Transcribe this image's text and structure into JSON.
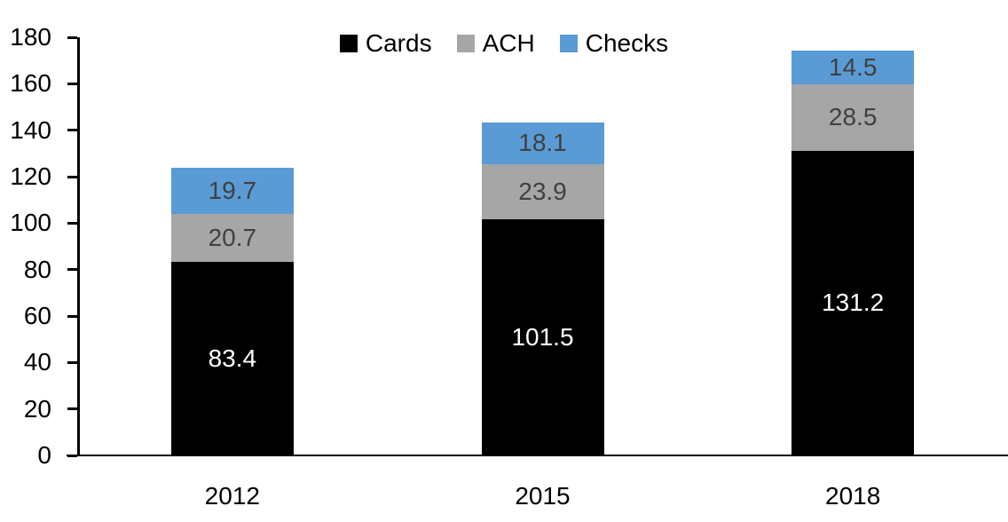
{
  "chart_data": {
    "type": "bar",
    "stacked": true,
    "title": "",
    "xlabel": "",
    "ylabel": "",
    "categories": [
      "2012",
      "2015",
      "2018"
    ],
    "series": [
      {
        "name": "Cards",
        "color": "#000000",
        "label_color": "#ffffff",
        "values": [
          83.4,
          101.5,
          131.2
        ]
      },
      {
        "name": "ACH",
        "color": "#a6a6a6",
        "label_color": "#404040",
        "values": [
          20.7,
          23.9,
          28.5
        ]
      },
      {
        "name": "Checks",
        "color": "#5b9bd5",
        "label_color": "#404040",
        "values": [
          19.7,
          18.1,
          14.5
        ]
      }
    ],
    "totals": [
      123.8,
      143.5,
      174.2
    ],
    "ylim": [
      0,
      180
    ],
    "yticks": [
      0,
      20,
      40,
      60,
      80,
      100,
      120,
      140,
      160,
      180
    ],
    "grid": false,
    "legend_position": "top-center",
    "data_labels": "inside-center",
    "axis_color": "#000000",
    "background_color": "#ffffff"
  }
}
